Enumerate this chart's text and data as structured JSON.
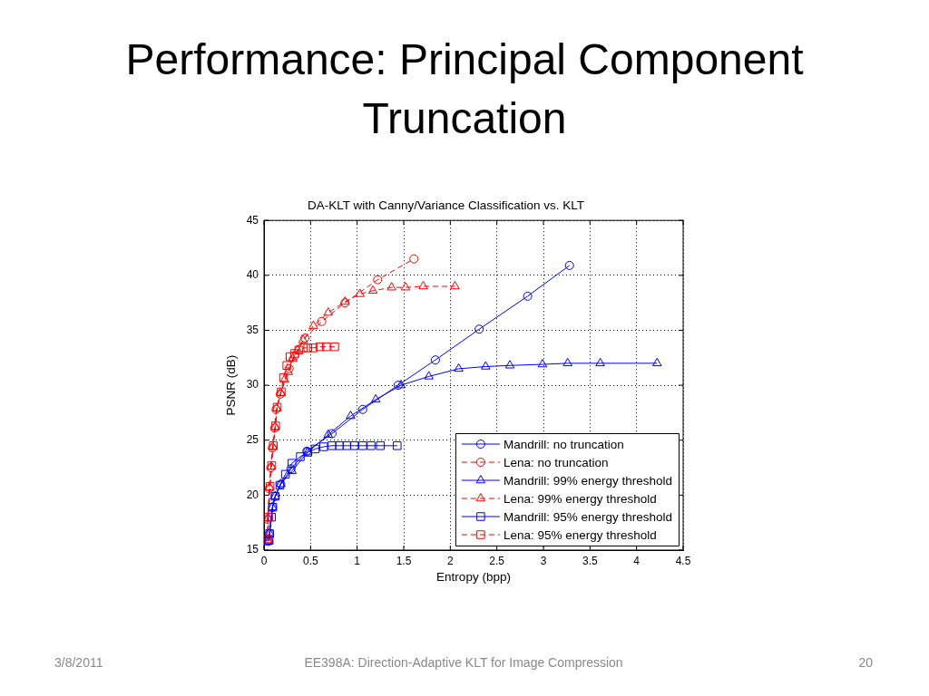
{
  "chart_data": {
    "type": "line",
    "title": "Performance: Principal Component Truncation",
    "subtitle": "DA-KLT with Canny/Variance Classification vs. KLT",
    "xlabel": "Entropy (bpp)",
    "ylabel": "PSNR (dB)",
    "xlim": [
      0,
      4.5
    ],
    "xticks": [
      0,
      0.5,
      1,
      1.5,
      2,
      2.5,
      3,
      3.5,
      4,
      4.5
    ],
    "ylim": [
      15,
      45
    ],
    "yticks": [
      15,
      20,
      25,
      30,
      35,
      40,
      45
    ],
    "grid": true,
    "legend": "bottom right",
    "annotations": [
      "3/8/2011",
      "EE398A: Direction-Adaptive KLT for Image Compression",
      "20"
    ],
    "series": [
      {
        "name": "Mandrill: no truncation",
        "color": "#0000ff",
        "marker": "circle",
        "line_style": "solid",
        "x": [
          0.05,
          0.06,
          0.09,
          0.12,
          0.18,
          0.29,
          0.46,
          0.73,
          1.06,
          1.44,
          1.84,
          2.31,
          2.83,
          3.28
        ],
        "values": [
          15.8,
          16.5,
          18.9,
          19.9,
          21.0,
          22.4,
          24.0,
          25.6,
          27.8,
          30.0,
          32.3,
          35.1,
          38.1,
          40.9
        ]
      },
      {
        "name": "Lena: no truncation",
        "color": "#ff0000",
        "marker": "circle",
        "line_style": "dashed",
        "x": [
          0.035,
          0.04,
          0.055,
          0.073,
          0.09,
          0.115,
          0.13,
          0.175,
          0.27,
          0.33,
          0.44,
          0.62,
          0.87,
          1.22,
          1.61
        ],
        "values": [
          15.8,
          17.8,
          20.6,
          22.5,
          24.3,
          26.1,
          27.8,
          29.2,
          31.5,
          32.7,
          34.3,
          35.8,
          37.5,
          39.6,
          41.5
        ]
      },
      {
        "name": "Mandrill: 99% energy threshold",
        "color": "#0000ff",
        "marker": "triangle",
        "line_style": "solid",
        "x": [
          0.05,
          0.06,
          0.09,
          0.12,
          0.18,
          0.3,
          0.47,
          0.69,
          0.93,
          1.2,
          1.47,
          1.77,
          2.09,
          2.38,
          2.64,
          2.99,
          3.26,
          3.61,
          4.22
        ],
        "values": [
          15.8,
          16.5,
          18.9,
          19.9,
          21.0,
          22.2,
          23.9,
          25.5,
          27.2,
          28.7,
          30.0,
          30.8,
          31.5,
          31.7,
          31.8,
          31.9,
          32.0,
          32.0,
          32.0
        ]
      },
      {
        "name": "Lena: 99% energy threshold",
        "color": "#ff0000",
        "marker": "triangle",
        "line_style": "dashed",
        "x": [
          0.04,
          0.045,
          0.06,
          0.078,
          0.094,
          0.12,
          0.136,
          0.18,
          0.22,
          0.26,
          0.31,
          0.36,
          0.42,
          0.53,
          0.69,
          0.87,
          1.03,
          1.17,
          1.37,
          1.52,
          1.71,
          2.05
        ],
        "values": [
          15.9,
          17.9,
          20.7,
          22.6,
          24.4,
          26.2,
          27.9,
          29.3,
          30.5,
          31.2,
          32.4,
          33.2,
          34.1,
          35.4,
          36.6,
          37.6,
          38.3,
          38.6,
          38.9,
          38.9,
          39.0,
          39.0
        ]
      },
      {
        "name": "Mandrill: 95% energy threshold",
        "color": "#0000ff",
        "marker": "square",
        "line_style": "solid",
        "x": [
          0.055,
          0.06,
          0.08,
          0.094,
          0.12,
          0.17,
          0.23,
          0.3,
          0.39,
          0.47,
          0.55,
          0.64,
          0.73,
          0.81,
          0.89,
          0.97,
          1.06,
          1.15,
          1.25,
          1.43
        ],
        "values": [
          15.9,
          16.5,
          18.0,
          18.9,
          19.9,
          20.9,
          21.9,
          22.9,
          23.5,
          23.9,
          24.2,
          24.4,
          24.5,
          24.5,
          24.5,
          24.5,
          24.5,
          24.5,
          24.5,
          24.5
        ]
      },
      {
        "name": "Lena: 95% energy threshold",
        "color": "#ff0000",
        "marker": "square",
        "line_style": "dashed",
        "x": [
          0.045,
          0.05,
          0.065,
          0.083,
          0.1,
          0.125,
          0.142,
          0.185,
          0.21,
          0.245,
          0.28,
          0.33,
          0.375,
          0.42,
          0.47,
          0.53,
          0.6,
          0.67,
          0.76
        ],
        "values": [
          16.0,
          18.0,
          20.8,
          22.7,
          24.5,
          26.3,
          28.0,
          29.4,
          30.7,
          31.8,
          32.6,
          32.9,
          33.2,
          33.4,
          33.4,
          33.4,
          33.5,
          33.5,
          33.5
        ]
      }
    ]
  }
}
